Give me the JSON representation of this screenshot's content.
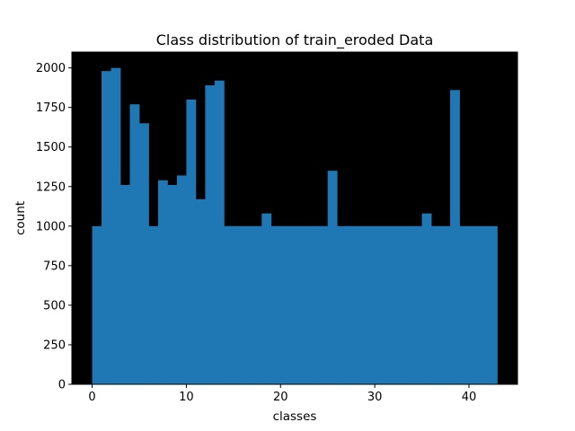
{
  "chart_data": {
    "type": "bar",
    "title": "Class distribution of train_eroded Data",
    "xlabel": "classes",
    "ylabel": "count",
    "xlim": [
      -2.15,
      45.15
    ],
    "ylim": [
      0,
      2100
    ],
    "xticks": [
      0,
      10,
      20,
      30,
      40
    ],
    "yticks": [
      0,
      250,
      500,
      750,
      1000,
      1250,
      1500,
      1750,
      2000
    ],
    "plot_background": "#000000",
    "bar_color": "#1f77b4",
    "grid": false,
    "bins": {
      "start": 0,
      "width": 1,
      "values": [
        1000,
        1980,
        2000,
        1260,
        1770,
        1650,
        1000,
        1290,
        1260,
        1320,
        1800,
        1170,
        1890,
        1920,
        1000,
        1000,
        1000,
        1000,
        1080,
        1000,
        1000,
        1000,
        1000,
        1000,
        1000,
        1350,
        1000,
        1000,
        1000,
        1000,
        1000,
        1000,
        1000,
        1000,
        1000,
        1080,
        1000,
        1000,
        1860,
        1000,
        1000,
        1000,
        1000
      ]
    }
  }
}
